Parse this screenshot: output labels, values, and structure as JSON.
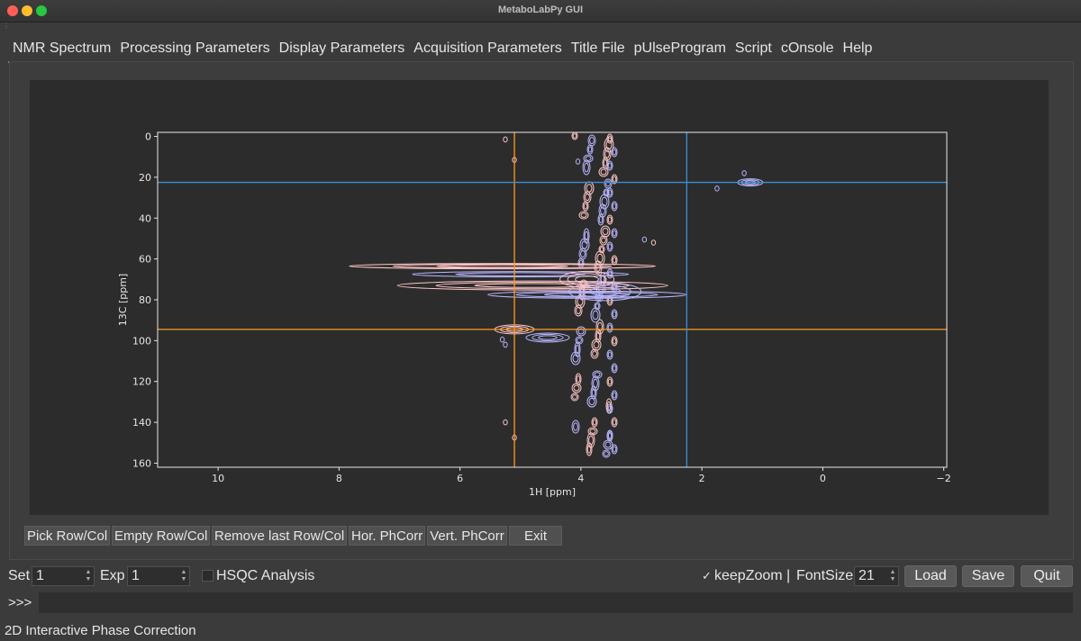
{
  "window": {
    "title": "MetaboLabPy GUI"
  },
  "tabs": [
    "NMR Spectrum",
    "Processing Parameters",
    "Display Parameters",
    "Acquisition Parameters",
    "Title File",
    "pUlseProgram",
    "Script",
    "cOnsole",
    "Help"
  ],
  "plot": {
    "xlabel": "1H [ppm]",
    "ylabel": "13C [ppm]",
    "x_ticks": [
      "10",
      "8",
      "6",
      "4",
      "2",
      "0",
      "−2"
    ],
    "y_ticks": [
      "0",
      "20",
      "40",
      "60",
      "80",
      "100",
      "120",
      "140",
      "160"
    ],
    "x_range": [
      11,
      -2.05
    ],
    "y_range": [
      -2,
      162
    ],
    "crosshairs": {
      "orange": {
        "x_ppm": 5.1,
        "y_ppm": 94.5,
        "color": "#ff9a1f"
      },
      "blue": {
        "x_ppm": 2.25,
        "y_ppm": 22.5,
        "color": "#3b8fd6"
      }
    },
    "colors": {
      "positive": "#b9b7ff",
      "negative": "#ffc6c6"
    }
  },
  "buttons": [
    "Pick Row/Col",
    "Empty Row/Col",
    "Remove last Row/Col",
    "Hor. PhCorr",
    "Vert. PhCorr",
    "Exit"
  ],
  "controls": {
    "set_label": "Set",
    "set_value": "1",
    "exp_label": "Exp",
    "exp_value": "1",
    "hsqc_label": "HSQC Analysis",
    "keepzoom_mark": "✓",
    "keepzoom_label": "keepZoom |",
    "fontsize_label": "FontSize",
    "fontsize_value": "21",
    "load": "Load",
    "save": "Save",
    "quit": "Quit"
  },
  "console": {
    "prompt": ">>>"
  },
  "status": "2D Interactive Phase Correction"
}
